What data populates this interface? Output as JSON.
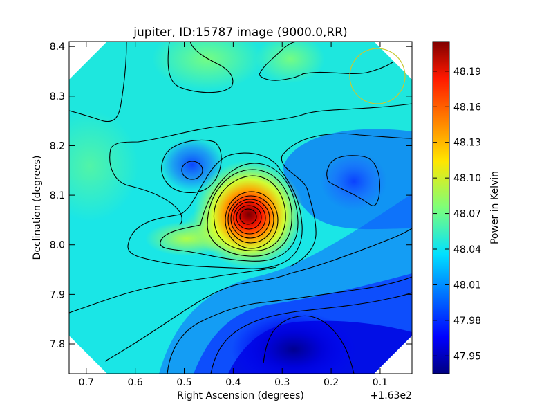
{
  "chart_data": [
    {
      "type": "heatmap",
      "title": "jupiter, ID:15787 image (9000.0,RR)",
      "xlabel": "Right Ascension (degrees)",
      "ylabel": "Declination (degrees)",
      "x_offset_label": "+1.63e2",
      "x_ticks": [
        0.7,
        0.6,
        0.5,
        0.4,
        0.3,
        0.2,
        0.1
      ],
      "x_tick_labels": [
        "0.7",
        "0.6",
        "0.5",
        "0.4",
        "0.3",
        "0.2",
        "0.1"
      ],
      "xlim": [
        0.735,
        0.035
      ],
      "y_ticks": [
        7.8,
        7.9,
        8.0,
        8.1,
        8.2,
        8.3,
        8.4
      ],
      "y_tick_labels": [
        "7.8",
        "7.9",
        "8.0",
        "8.1",
        "8.2",
        "8.3",
        "8.4"
      ],
      "ylim": [
        7.74,
        8.41
      ],
      "colorbar": {
        "label": "Power in Kelvin",
        "range": [
          47.935,
          48.215
        ],
        "ticks": [
          47.95,
          47.98,
          48.01,
          48.04,
          48.07,
          48.1,
          48.13,
          48.16,
          48.19
        ],
        "tick_labels": [
          "47.95",
          "47.98",
          "48.01",
          "48.04",
          "48.07",
          "48.10",
          "48.13",
          "48.16",
          "48.19"
        ],
        "colormap": "jet"
      },
      "peak": {
        "x": 0.37,
        "y": 8.055,
        "value": 48.21
      },
      "secondary_minimum": {
        "x": 0.49,
        "y": 8.15
      },
      "low_region": {
        "x": 0.16,
        "y": 8.135
      },
      "deep_low_region": {
        "x": 0.28,
        "y": 7.81
      },
      "beam_circle": {
        "x": 0.115,
        "y": 8.34,
        "radius_deg": 0.056,
        "color": "#c8c832"
      },
      "grid": false,
      "legend": "none"
    }
  ]
}
